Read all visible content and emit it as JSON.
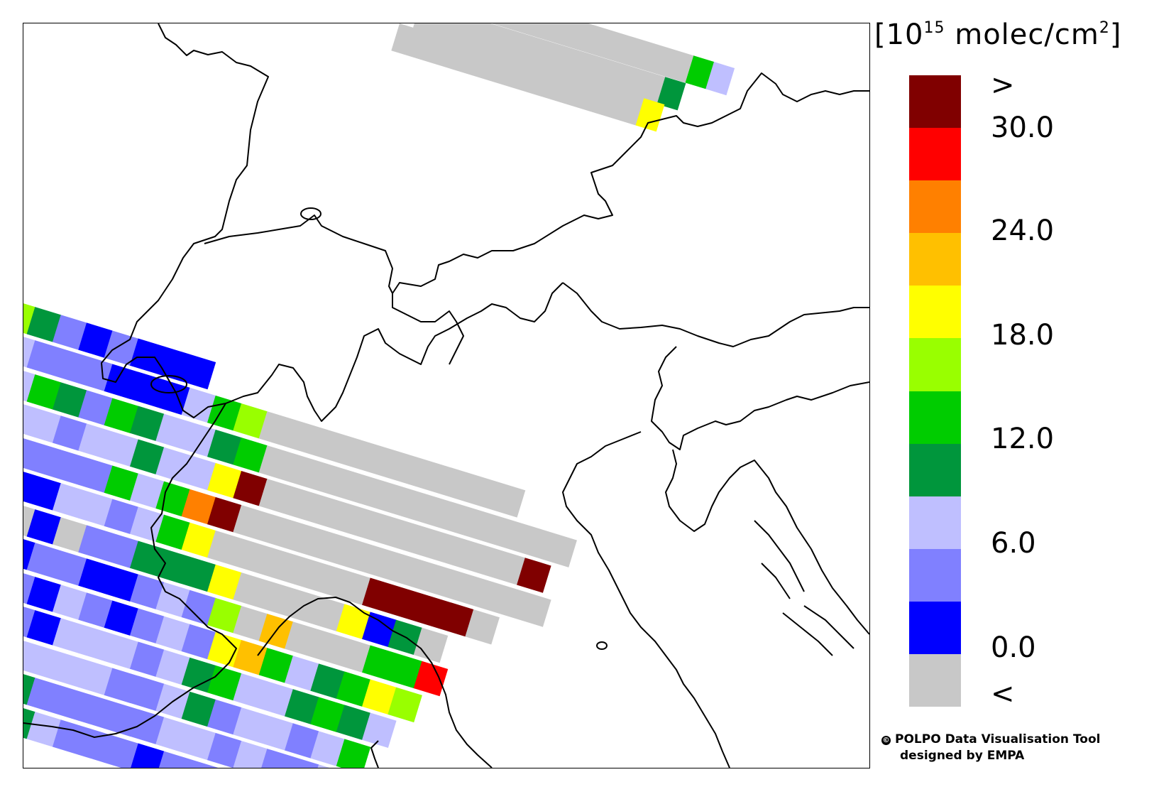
{
  "legend": {
    "unit_prefix": "[10",
    "unit_exponent": "15",
    "unit_suffix": " molec/cm",
    "unit_squared": "2",
    "unit_close": "]",
    "bins": [
      {
        "color": "#800000"
      },
      {
        "color": "#ff0000"
      },
      {
        "color": "#ff8000"
      },
      {
        "color": "#ffc000"
      },
      {
        "color": "#ffff00"
      },
      {
        "color": "#99ff00"
      },
      {
        "color": "#00cc00"
      },
      {
        "color": "#00963c"
      },
      {
        "color": "#bfbfff"
      },
      {
        "color": "#8080ff"
      },
      {
        "color": "#0000ff"
      },
      {
        "color": "#c8c8c8"
      }
    ],
    "labels": [
      ">",
      "30.0",
      "24.0",
      "18.0",
      "12.0",
      "6.0",
      "0.0",
      "<"
    ]
  },
  "credits": {
    "line1": "POLPO Data Visualisation Tool",
    "line2": "designed by EMPA",
    "copyright_icon": "copyright-icon"
  },
  "map": {
    "region": "Alps / Northern Italy",
    "borders_color": "#000000",
    "background_color": "#ffffff"
  }
}
